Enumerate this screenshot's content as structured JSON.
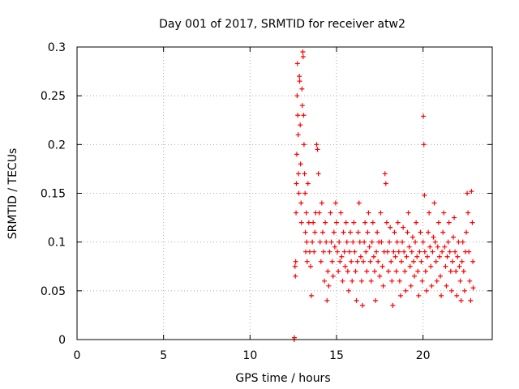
{
  "chart_data": {
    "type": "scatter",
    "title": "Day 001 of 2017, SRMTID for receiver atw2",
    "xlabel": "GPS time / hours",
    "ylabel": "SRMTID / TECUs",
    "xlim": [
      0,
      24
    ],
    "ylim": [
      0,
      0.3
    ],
    "x_ticks": [
      0,
      5,
      10,
      15,
      20
    ],
    "x_tick_labels": [
      "0",
      "5",
      "10",
      "15",
      "20"
    ],
    "y_ticks": [
      0,
      0.05,
      0.1,
      0.15,
      0.2,
      0.25,
      0.3
    ],
    "y_tick_labels": [
      "0",
      "0.05",
      "0.1",
      "0.15",
      "0.2",
      "0.25",
      "0.3"
    ],
    "grid": true,
    "marker": "+",
    "color": "#ff0000",
    "series": [
      {
        "name": "SRMTID",
        "points": [
          [
            12.55,
            0.0
          ],
          [
            12.56,
            0.002
          ],
          [
            12.6,
            0.075
          ],
          [
            12.62,
            0.065
          ],
          [
            12.64,
            0.08
          ],
          [
            12.66,
            0.13
          ],
          [
            12.68,
            0.16
          ],
          [
            12.7,
            0.19
          ],
          [
            12.72,
            0.25
          ],
          [
            12.74,
            0.283
          ],
          [
            12.76,
            0.23
          ],
          [
            12.78,
            0.21
          ],
          [
            12.8,
            0.17
          ],
          [
            12.82,
            0.15
          ],
          [
            12.85,
            0.27
          ],
          [
            12.87,
            0.265
          ],
          [
            12.9,
            0.22
          ],
          [
            12.92,
            0.18
          ],
          [
            12.95,
            0.14
          ],
          [
            12.97,
            0.12
          ],
          [
            13.0,
            0.257
          ],
          [
            13.02,
            0.24
          ],
          [
            13.05,
            0.295
          ],
          [
            13.07,
            0.29
          ],
          [
            13.1,
            0.23
          ],
          [
            13.12,
            0.2
          ],
          [
            13.15,
            0.17
          ],
          [
            13.18,
            0.15
          ],
          [
            13.2,
            0.11
          ],
          [
            13.22,
            0.09
          ],
          [
            13.25,
            0.13
          ],
          [
            13.28,
            0.1
          ],
          [
            13.3,
            0.08
          ],
          [
            13.35,
            0.16
          ],
          [
            13.4,
            0.12
          ],
          [
            13.45,
            0.09
          ],
          [
            13.5,
            0.075
          ],
          [
            13.55,
            0.045
          ],
          [
            13.6,
            0.1
          ],
          [
            13.65,
            0.12
          ],
          [
            13.7,
            0.09
          ],
          [
            13.75,
            0.11
          ],
          [
            13.8,
            0.13
          ],
          [
            13.85,
            0.2
          ],
          [
            13.9,
            0.195
          ],
          [
            13.95,
            0.17
          ],
          [
            14.0,
            0.13
          ],
          [
            14.05,
            0.1
          ],
          [
            14.1,
            0.08
          ],
          [
            14.15,
            0.14
          ],
          [
            14.2,
            0.11
          ],
          [
            14.25,
            0.09
          ],
          [
            14.3,
            0.06
          ],
          [
            14.35,
            0.12
          ],
          [
            14.4,
            0.1
          ],
          [
            14.45,
            0.04
          ],
          [
            14.5,
            0.07
          ],
          [
            14.55,
            0.055
          ],
          [
            14.6,
            0.09
          ],
          [
            14.65,
            0.13
          ],
          [
            14.7,
            0.1
          ],
          [
            14.75,
            0.08
          ],
          [
            14.8,
            0.065
          ],
          [
            14.85,
            0.11
          ],
          [
            14.9,
            0.095
          ],
          [
            14.95,
            0.14
          ],
          [
            15.0,
            0.12
          ],
          [
            15.05,
            0.09
          ],
          [
            15.1,
            0.07
          ],
          [
            15.15,
            0.1
          ],
          [
            15.2,
            0.08
          ],
          [
            15.25,
            0.13
          ],
          [
            15.3,
            0.085
          ],
          [
            15.35,
            0.06
          ],
          [
            15.4,
            0.11
          ],
          [
            15.45,
            0.09
          ],
          [
            15.5,
            0.075
          ],
          [
            15.55,
            0.12
          ],
          [
            15.6,
            0.1
          ],
          [
            15.65,
            0.07
          ],
          [
            15.7,
            0.05
          ],
          [
            15.75,
            0.09
          ],
          [
            15.8,
            0.11
          ],
          [
            15.85,
            0.08
          ],
          [
            15.9,
            0.06
          ],
          [
            15.95,
            0.1
          ],
          [
            16.0,
            0.12
          ],
          [
            16.05,
            0.09
          ],
          [
            16.1,
            0.07
          ],
          [
            16.15,
            0.04
          ],
          [
            16.2,
            0.08
          ],
          [
            16.25,
            0.11
          ],
          [
            16.3,
            0.14
          ],
          [
            16.35,
            0.1
          ],
          [
            16.4,
            0.085
          ],
          [
            16.45,
            0.06
          ],
          [
            16.5,
            0.035
          ],
          [
            16.55,
            0.08
          ],
          [
            16.6,
            0.1
          ],
          [
            16.65,
            0.12
          ],
          [
            16.7,
            0.09
          ],
          [
            16.75,
            0.07
          ],
          [
            16.8,
            0.11
          ],
          [
            16.85,
            0.13
          ],
          [
            16.9,
            0.095
          ],
          [
            16.95,
            0.08
          ],
          [
            17.0,
            0.06
          ],
          [
            17.05,
            0.1
          ],
          [
            17.1,
            0.12
          ],
          [
            17.15,
            0.085
          ],
          [
            17.2,
            0.07
          ],
          [
            17.25,
            0.04
          ],
          [
            17.3,
            0.09
          ],
          [
            17.35,
            0.11
          ],
          [
            17.4,
            0.08
          ],
          [
            17.45,
            0.1
          ],
          [
            17.5,
            0.065
          ],
          [
            17.55,
            0.13
          ],
          [
            17.6,
            0.1
          ],
          [
            17.65,
            0.075
          ],
          [
            17.7,
            0.055
          ],
          [
            17.75,
            0.09
          ],
          [
            17.8,
            0.17
          ],
          [
            17.85,
            0.16
          ],
          [
            17.9,
            0.12
          ],
          [
            17.95,
            0.09
          ],
          [
            18.0,
            0.07
          ],
          [
            18.05,
            0.1
          ],
          [
            18.1,
            0.115
          ],
          [
            18.15,
            0.08
          ],
          [
            18.2,
            0.06
          ],
          [
            18.25,
            0.035
          ],
          [
            18.3,
            0.09
          ],
          [
            18.35,
            0.11
          ],
          [
            18.4,
            0.085
          ],
          [
            18.45,
            0.07
          ],
          [
            18.5,
            0.1
          ],
          [
            18.55,
            0.12
          ],
          [
            18.6,
            0.09
          ],
          [
            18.65,
            0.06
          ],
          [
            18.7,
            0.045
          ],
          [
            18.75,
            0.08
          ],
          [
            18.8,
            0.1
          ],
          [
            18.85,
            0.115
          ],
          [
            18.9,
            0.09
          ],
          [
            18.95,
            0.07
          ],
          [
            19.0,
            0.05
          ],
          [
            19.05,
            0.085
          ],
          [
            19.1,
            0.11
          ],
          [
            19.15,
            0.13
          ],
          [
            19.2,
            0.095
          ],
          [
            19.25,
            0.075
          ],
          [
            19.3,
            0.055
          ],
          [
            19.35,
            0.09
          ],
          [
            19.4,
            0.105
          ],
          [
            19.45,
            0.08
          ],
          [
            19.5,
            0.065
          ],
          [
            19.55,
            0.1
          ],
          [
            19.6,
            0.12
          ],
          [
            19.65,
            0.085
          ],
          [
            19.7,
            0.07
          ],
          [
            19.75,
            0.045
          ],
          [
            19.8,
            0.09
          ],
          [
            19.85,
            0.11
          ],
          [
            19.9,
            0.08
          ],
          [
            19.95,
            0.06
          ],
          [
            20.0,
            0.1
          ],
          [
            20.02,
            0.229
          ],
          [
            20.05,
            0.2
          ],
          [
            20.08,
            0.148
          ],
          [
            20.1,
            0.09
          ],
          [
            20.15,
            0.07
          ],
          [
            20.2,
            0.05
          ],
          [
            20.25,
            0.085
          ],
          [
            20.3,
            0.11
          ],
          [
            20.35,
            0.13
          ],
          [
            20.4,
            0.095
          ],
          [
            20.45,
            0.075
          ],
          [
            20.5,
            0.055
          ],
          [
            20.55,
            0.09
          ],
          [
            20.6,
            0.105
          ],
          [
            20.65,
            0.14
          ],
          [
            20.7,
            0.1
          ],
          [
            20.75,
            0.08
          ],
          [
            20.8,
            0.06
          ],
          [
            20.85,
            0.095
          ],
          [
            20.9,
            0.12
          ],
          [
            20.95,
            0.085
          ],
          [
            21.0,
            0.065
          ],
          [
            21.05,
            0.045
          ],
          [
            21.1,
            0.09
          ],
          [
            21.15,
            0.11
          ],
          [
            21.2,
            0.13
          ],
          [
            21.25,
            0.095
          ],
          [
            21.3,
            0.075
          ],
          [
            21.35,
            0.055
          ],
          [
            21.4,
            0.085
          ],
          [
            21.45,
            0.1
          ],
          [
            21.5,
            0.12
          ],
          [
            21.55,
            0.09
          ],
          [
            21.6,
            0.07
          ],
          [
            21.65,
            0.05
          ],
          [
            21.7,
            0.08
          ],
          [
            21.75,
            0.105
          ],
          [
            21.8,
            0.125
          ],
          [
            21.85,
            0.09
          ],
          [
            21.9,
            0.07
          ],
          [
            21.95,
            0.045
          ],
          [
            22.0,
            0.085
          ],
          [
            22.05,
            0.1
          ],
          [
            22.1,
            0.075
          ],
          [
            22.15,
            0.06
          ],
          [
            22.2,
            0.04
          ],
          [
            22.25,
            0.08
          ],
          [
            22.3,
            0.1
          ],
          [
            22.35,
            0.07
          ],
          [
            22.4,
            0.05
          ],
          [
            22.45,
            0.09
          ],
          [
            22.5,
            0.11
          ],
          [
            22.55,
            0.15
          ],
          [
            22.6,
            0.13
          ],
          [
            22.65,
            0.09
          ],
          [
            22.7,
            0.06
          ],
          [
            22.75,
            0.04
          ],
          [
            22.8,
            0.152
          ],
          [
            22.85,
            0.12
          ],
          [
            22.88,
            0.08
          ],
          [
            22.9,
            0.053
          ]
        ]
      }
    ]
  }
}
